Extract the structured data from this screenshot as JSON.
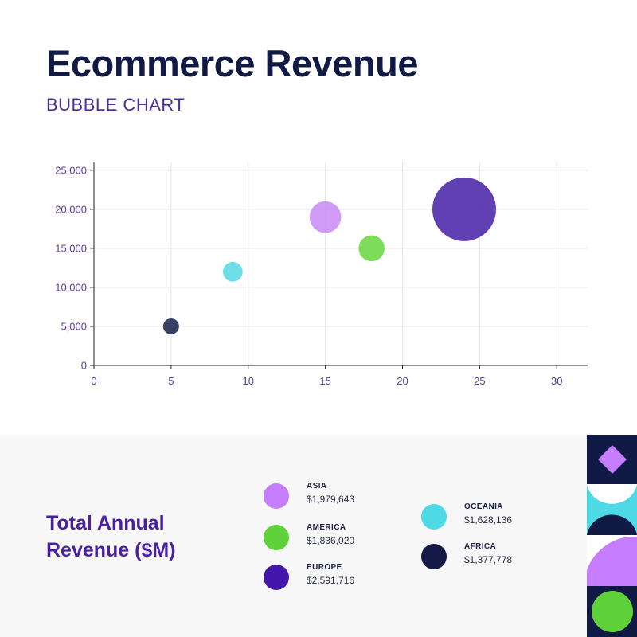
{
  "header": {
    "title": "Ecommerce Revenue",
    "subtitle": "BUBBLE CHART"
  },
  "colors": {
    "navy": "#111a44",
    "purple_text": "#4a1fa0",
    "asia": "#c77dff",
    "america": "#5fd13b",
    "europe": "#4316ab",
    "oceania": "#4dd9e6",
    "africa": "#141a45"
  },
  "chart_data": {
    "type": "scatter",
    "subtype": "bubble",
    "xlim": [
      0,
      32
    ],
    "ylim": [
      0,
      26000
    ],
    "xticks": [
      0,
      5,
      10,
      15,
      20,
      25,
      30
    ],
    "yticks": [
      0,
      5000,
      10000,
      15000,
      20000,
      25000
    ],
    "ytick_labels": [
      "0",
      "5,000",
      "10,000",
      "15,000",
      "20,000",
      "25,000"
    ],
    "grid": true,
    "series": [
      {
        "name": "Africa",
        "x": 5,
        "y": 5000,
        "size": 1377778,
        "color": "#1e2550"
      },
      {
        "name": "Oceania",
        "x": 9,
        "y": 12000,
        "size": 1628136,
        "color": "#5ad9e6"
      },
      {
        "name": "Asia",
        "x": 15,
        "y": 19000,
        "size": 1979643,
        "color": "#c98cf5"
      },
      {
        "name": "America",
        "x": 18,
        "y": 15000,
        "size": 1836020,
        "color": "#6bd743"
      },
      {
        "name": "Europe",
        "x": 24,
        "y": 20000,
        "size": 2591716,
        "color": "#4b25aa"
      }
    ]
  },
  "summary": {
    "label": "Total Annual Revenue ($M)",
    "legend": [
      {
        "name": "ASIA",
        "value": "$1,979,643",
        "color": "#c77dff"
      },
      {
        "name": "AMERICA",
        "value": "$1,836,020",
        "color": "#5fd13b"
      },
      {
        "name": "EUROPE",
        "value": "$2,591,716",
        "color": "#4316ab"
      },
      {
        "name": "OCEANIA",
        "value": "$1,628,136",
        "color": "#4dd9e6"
      },
      {
        "name": "AFRICA",
        "value": "$1,377,778",
        "color": "#141a45"
      }
    ]
  }
}
